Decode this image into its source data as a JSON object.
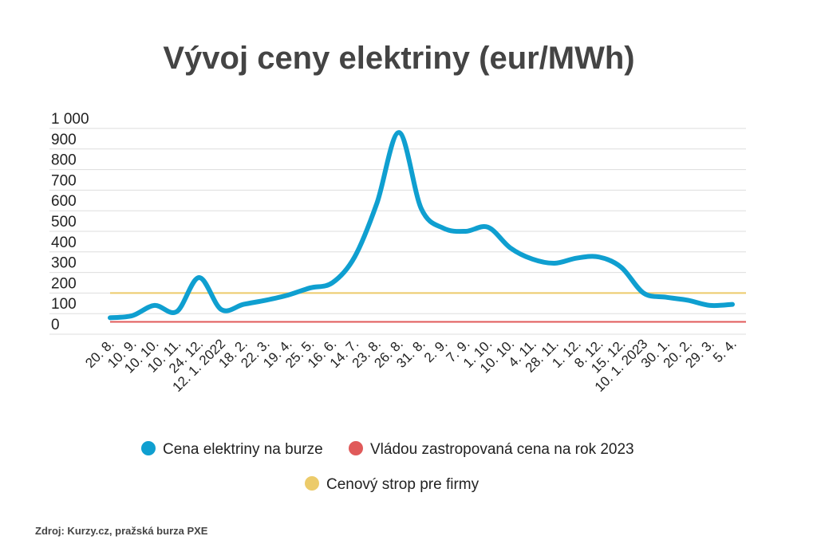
{
  "chart_data": {
    "type": "line",
    "title": "Vývoj ceny elektriny (eur/MWh)",
    "categories": [
      "20. 8.",
      "10. 9.",
      "10. 10.",
      "10. 11.",
      "24. 12.",
      "12. 1. 2022",
      "18. 2.",
      "22. 3.",
      "19. 4.",
      "25. 5.",
      "16. 6.",
      "14. 7.",
      "23. 8.",
      "26. 8.",
      "31. 8.",
      "2. 9.",
      "7. 9.",
      "1. 10.",
      "10. 10.",
      "4. 11.",
      "28. 11.",
      "1. 12.",
      "8. 12.",
      "15. 12.",
      "10. 1. 2023",
      "30. 1.",
      "20. 2.",
      "29. 3.",
      "5. 4."
    ],
    "series": [
      {
        "name": "Cena elektriny na burze",
        "color": "#0f9fd0",
        "values": [
          80,
          90,
          140,
          110,
          275,
          120,
          145,
          165,
          190,
          225,
          250,
          375,
          635,
          980,
          610,
          515,
          500,
          520,
          420,
          365,
          345,
          370,
          375,
          325,
          200,
          180,
          165,
          140,
          145
        ]
      }
    ],
    "reference_lines": [
      {
        "name": "Vládou zastropovaná cena na rok 2023",
        "color": "#e05a5a",
        "value": 60
      },
      {
        "name": "Cenový strop pre firmy",
        "color": "#eccb6a",
        "value": 200
      }
    ],
    "ylim": [
      0,
      1000
    ],
    "yticks": [
      0,
      100,
      200,
      300,
      400,
      500,
      600,
      700,
      800,
      900,
      {
        "value": 1000,
        "label": "1 000"
      }
    ],
    "grid": true,
    "source": "Zdroj: Kurzy.cz, pražská  burza PXE"
  }
}
